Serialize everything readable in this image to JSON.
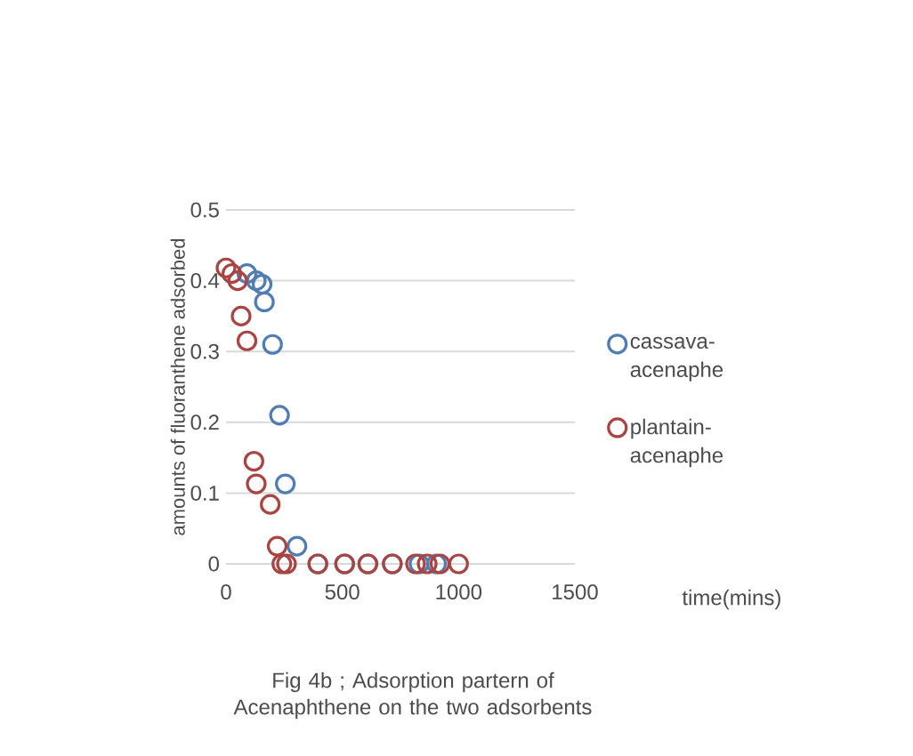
{
  "chart_data": {
    "type": "scatter",
    "title": "Fig 4b ; Adsorption partern of Acenaphthene on the two adsorbents",
    "xlabel": "time(mins)",
    "ylabel": "amounts of fluoranthene adsorbed",
    "xlim": [
      0,
      1500
    ],
    "ylim": [
      0,
      0.5
    ],
    "xticks": [
      0,
      500,
      1000,
      1500
    ],
    "yticks": [
      0,
      0.1,
      0.2,
      0.3,
      0.4,
      0.5
    ],
    "grid": "y",
    "legend": "right",
    "marker": "circle",
    "series": [
      {
        "name": "cassava-acenaphe",
        "color": "#4f7db3",
        "x": [
          90,
          130,
          155,
          165,
          200,
          230,
          255,
          305,
          395,
          510,
          610,
          715,
          830,
          905
        ],
        "values": [
          0.41,
          0.4,
          0.395,
          0.37,
          0.31,
          0.21,
          0.113,
          0.025,
          0,
          0,
          0,
          0,
          0,
          0
        ]
      },
      {
        "name": "plantain-acenaphe",
        "color": "#a94442",
        "x": [
          0,
          25,
          50,
          65,
          90,
          120,
          130,
          190,
          220,
          240,
          260,
          395,
          510,
          610,
          715,
          815,
          865,
          920,
          1000
        ],
        "values": [
          0.418,
          0.41,
          0.4,
          0.35,
          0.315,
          0.145,
          0.113,
          0.084,
          0.025,
          0,
          0,
          0,
          0,
          0,
          0,
          0,
          0,
          0,
          0
        ]
      }
    ]
  }
}
